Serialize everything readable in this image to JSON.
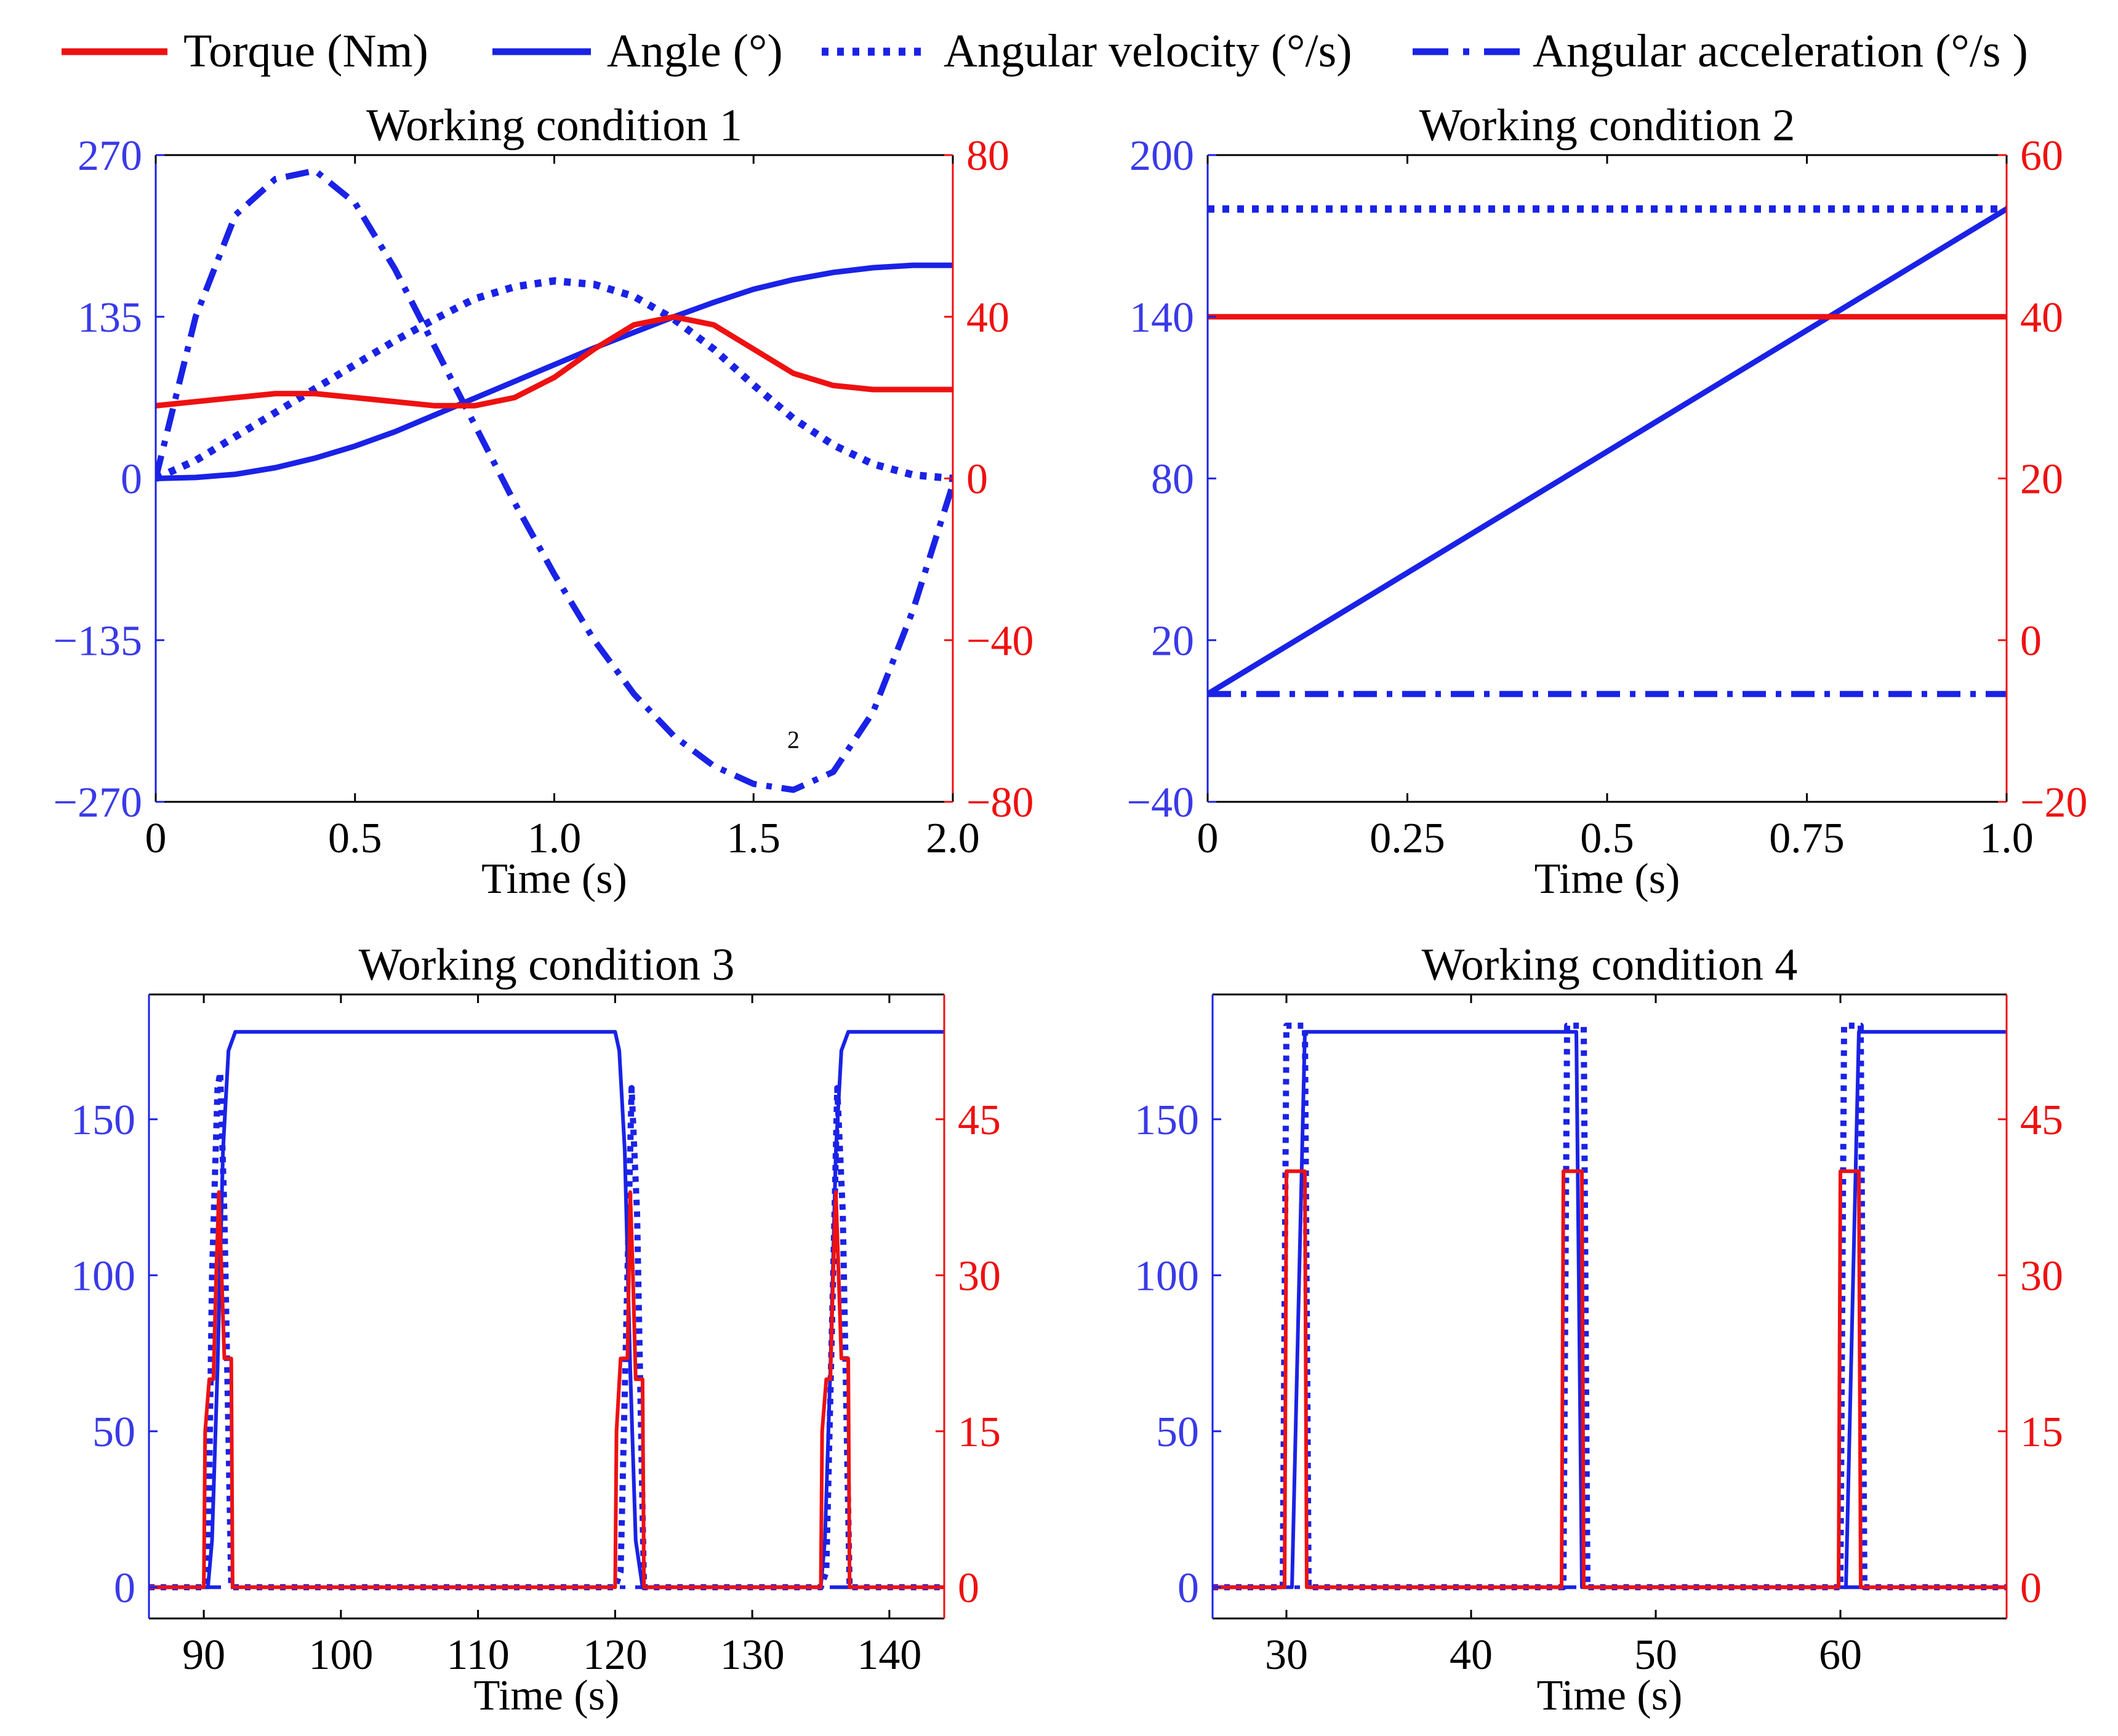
{
  "colors": {
    "torque": "#ee1111",
    "blue": "#1a22e6",
    "left_tick": "#3a3ae8",
    "right_tick": "#ee1111"
  },
  "legend": [
    {
      "label": "Torque (Nm)",
      "style": "solid-red"
    },
    {
      "label": "Angle (°)",
      "style": "solid-blue"
    },
    {
      "label": "Angular velocity (°/s)",
      "style": "dotted-blue"
    },
    {
      "label": "Angular acceleration (°/s )",
      "style": "dashdot-blue"
    }
  ],
  "chart_data": [
    {
      "type": "line",
      "title": "Working condition 1",
      "xlabel": "Time (s)",
      "xlim": [
        0,
        2
      ],
      "xticks": [
        0,
        0.5,
        1.0,
        1.5,
        2.0
      ],
      "xtick_labels": [
        "0",
        "0.5",
        "1.0",
        "1.5",
        "2.0"
      ],
      "ylim_left": [
        -270,
        270
      ],
      "yticks_left": [
        -270,
        -135,
        0,
        135,
        270
      ],
      "ytick_labels_left": [
        "−270",
        "−135",
        "0",
        "135",
        "270"
      ],
      "ylim_right": [
        -80,
        80
      ],
      "yticks_right": [
        -80,
        -40,
        0,
        40,
        80
      ],
      "ytick_labels_right": [
        "−80",
        "−40",
        "0",
        "40",
        "80"
      ],
      "annotation": {
        "text": "2",
        "x": 1.6,
        "y": -225
      },
      "series": [
        {
          "name": "Angle (°)",
          "axis": "left",
          "style": "solid-blue",
          "x": [
            0,
            0.1,
            0.2,
            0.3,
            0.4,
            0.5,
            0.6,
            0.7,
            0.8,
            0.9,
            1.0,
            1.1,
            1.2,
            1.3,
            1.4,
            1.5,
            1.6,
            1.7,
            1.8,
            1.9,
            2.0
          ],
          "y": [
            0,
            0.8,
            3.5,
            9,
            17,
            27,
            39,
            53,
            67,
            81,
            95,
            109,
            122,
            135,
            147,
            158,
            166,
            172,
            176,
            178,
            178
          ]
        },
        {
          "name": "Angular velocity (°/s)",
          "axis": "left",
          "style": "dotted-blue",
          "x": [
            0,
            0.1,
            0.2,
            0.3,
            0.4,
            0.5,
            0.6,
            0.7,
            0.8,
            0.9,
            1.0,
            1.1,
            1.2,
            1.3,
            1.4,
            1.5,
            1.6,
            1.7,
            1.8,
            1.9,
            2.0
          ],
          "y": [
            0,
            15,
            35,
            55,
            75,
            95,
            115,
            133,
            150,
            160,
            165,
            162,
            152,
            133,
            108,
            78,
            50,
            28,
            12,
            3,
            0
          ]
        },
        {
          "name": "Angular acceleration (°/s )",
          "axis": "left",
          "style": "dashdot-blue",
          "x": [
            0,
            0.1,
            0.2,
            0.3,
            0.4,
            0.5,
            0.6,
            0.7,
            0.8,
            0.9,
            1.0,
            1.1,
            1.2,
            1.3,
            1.4,
            1.5,
            1.6,
            1.7,
            1.8,
            1.9,
            2.0
          ],
          "y": [
            0,
            135,
            220,
            250,
            257,
            230,
            175,
            110,
            45,
            -20,
            -80,
            -135,
            -180,
            -215,
            -240,
            -255,
            -260,
            -245,
            -195,
            -110,
            -5
          ]
        },
        {
          "name": "Torque (Nm)",
          "axis": "right",
          "style": "solid-red",
          "x": [
            0,
            0.1,
            0.2,
            0.3,
            0.4,
            0.5,
            0.6,
            0.7,
            0.8,
            0.9,
            1.0,
            1.1,
            1.2,
            1.3,
            1.4,
            1.5,
            1.6,
            1.7,
            1.8,
            1.9,
            2.0
          ],
          "y": [
            18,
            19,
            20,
            21,
            21,
            20,
            19,
            18,
            18,
            20,
            25,
            32,
            38,
            40,
            38,
            32,
            26,
            23,
            22,
            22,
            22
          ]
        }
      ]
    },
    {
      "type": "line",
      "title": "Working condition 2",
      "xlabel": "Time (s)",
      "xlim": [
        0,
        1
      ],
      "xticks": [
        0,
        0.25,
        0.5,
        0.75,
        1.0
      ],
      "xtick_labels": [
        "0",
        "0.25",
        "0.5",
        "0.75",
        "1.0"
      ],
      "ylim_left": [
        -40,
        200
      ],
      "yticks_left": [
        -40,
        20,
        80,
        140,
        200
      ],
      "ytick_labels_left": [
        "−40",
        "20",
        "80",
        "140",
        "200"
      ],
      "ylim_right": [
        -20,
        60
      ],
      "yticks_right": [
        -20,
        0,
        20,
        40,
        60
      ],
      "ytick_labels_right": [
        "−20",
        "0",
        "20",
        "40",
        "60"
      ],
      "series": [
        {
          "name": "Angle (°)",
          "axis": "left",
          "style": "solid-blue",
          "x": [
            0,
            1
          ],
          "y": [
            0,
            180
          ]
        },
        {
          "name": "Angular velocity (°/s)",
          "axis": "left",
          "style": "dotted-blue",
          "x": [
            0,
            1
          ],
          "y": [
            180,
            180
          ]
        },
        {
          "name": "Angular acceleration (°/s )",
          "axis": "left",
          "style": "dashdot-blue",
          "x": [
            0,
            1
          ],
          "y": [
            0,
            0
          ]
        },
        {
          "name": "Torque (Nm)",
          "axis": "right",
          "style": "solid-red",
          "x": [
            0,
            1
          ],
          "y": [
            40,
            40
          ]
        }
      ]
    },
    {
      "type": "line",
      "title": "Working condition 3",
      "xlabel": "Time (s)",
      "xlim": [
        86,
        144
      ],
      "xticks": [
        90,
        100,
        110,
        120,
        130,
        140
      ],
      "xtick_labels": [
        "90",
        "100",
        "110",
        "120",
        "130",
        "140"
      ],
      "ylim_left": [
        -10,
        190
      ],
      "yticks_left": [
        0,
        50,
        100,
        150
      ],
      "ytick_labels_left": [
        "0",
        "50",
        "100",
        "150"
      ],
      "ylim_right": [
        -3,
        57
      ],
      "yticks_right": [
        0,
        15,
        30,
        45
      ],
      "ytick_labels_right": [
        "0",
        "15",
        "30",
        "45"
      ],
      "series": [
        {
          "name": "Angle (°)",
          "axis": "left",
          "style": "solid-blue",
          "x": [
            86,
            90.3,
            90.6,
            91,
            91.4,
            91.8,
            92.3,
            120,
            120.3,
            120.7,
            121.1,
            121.5,
            122,
            135,
            135.3,
            135.7,
            136.1,
            136.5,
            137,
            144
          ],
          "y": [
            0,
            0,
            15,
            70,
            140,
            172,
            178,
            178,
            172,
            140,
            70,
            15,
            0,
            0,
            15,
            70,
            140,
            172,
            178,
            178
          ]
        },
        {
          "name": "Angular velocity (°/s)",
          "axis": "left",
          "style": "dotted-blue",
          "x": [
            86,
            90,
            90.3,
            90.6,
            91,
            91.2,
            91.5,
            92,
            120,
            120.4,
            120.9,
            121.2,
            121.6,
            122.1,
            135,
            135.4,
            135.9,
            136.2,
            136.6,
            137.1,
            144
          ],
          "y": [
            0,
            0,
            5,
            100,
            160,
            165,
            120,
            0,
            0,
            5,
            100,
            160,
            120,
            0,
            0,
            5,
            100,
            160,
            120,
            0,
            0
          ]
        },
        {
          "name": "Angular acceleration (°/s )",
          "axis": "left",
          "style": "dashdot-blue",
          "x": [
            86,
            144
          ],
          "y": [
            0,
            0
          ]
        },
        {
          "name": "Torque (Nm)",
          "axis": "right",
          "style": "solid-red",
          "x": [
            86,
            90,
            90.1,
            90.4,
            90.7,
            90.9,
            91.1,
            91.3,
            91.5,
            91.6,
            91.7,
            91.8,
            92,
            92.1,
            120,
            120.1,
            120.4,
            120.7,
            120.9,
            121.1,
            121.3,
            121.5,
            121.6,
            121.7,
            121.8,
            122,
            122.1,
            135,
            135.1,
            135.4,
            135.7,
            135.9,
            136.1,
            136.3,
            136.5,
            136.6,
            136.7,
            136.8,
            137,
            137.1,
            144
          ],
          "y": [
            0,
            0,
            15,
            20,
            20,
            30,
            38,
            30,
            22,
            22,
            22,
            22,
            22,
            0,
            0,
            15,
            22,
            22,
            22,
            38,
            30,
            20,
            20,
            20,
            20,
            20,
            0,
            0,
            15,
            20,
            20,
            30,
            38,
            30,
            22,
            22,
            22,
            22,
            22,
            0,
            0
          ]
        }
      ]
    },
    {
      "type": "line",
      "title": "Working condition 4",
      "xlabel": "Time (s)",
      "xlim": [
        26,
        69
      ],
      "xticks": [
        30,
        40,
        50,
        60
      ],
      "xtick_labels": [
        "30",
        "40",
        "50",
        "60"
      ],
      "ylim_left": [
        -10,
        190
      ],
      "yticks_left": [
        0,
        50,
        100,
        150
      ],
      "ytick_labels_left": [
        "0",
        "50",
        "100",
        "150"
      ],
      "ylim_right": [
        -3,
        57
      ],
      "yticks_right": [
        0,
        15,
        30,
        45
      ],
      "ytick_labels_right": [
        "0",
        "15",
        "30",
        "45"
      ],
      "series": [
        {
          "name": "Angle (°)",
          "axis": "left",
          "style": "solid-blue",
          "x": [
            26,
            30,
            30.3,
            31,
            45,
            45.7,
            46,
            60,
            60.3,
            61,
            69
          ],
          "y": [
            0,
            0,
            0,
            178,
            178,
            178,
            0,
            0,
            0,
            178,
            178
          ]
        },
        {
          "name": "Angular velocity (°/s)",
          "axis": "left",
          "style": "dotted-blue",
          "x": [
            26,
            29.8,
            30,
            31,
            31.2,
            45,
            45.2,
            46.1,
            46.3,
            60,
            60.2,
            61.1,
            61.3,
            69
          ],
          "y": [
            0,
            0,
            180,
            180,
            0,
            0,
            180,
            180,
            0,
            0,
            180,
            180,
            0,
            0
          ]
        },
        {
          "name": "Angular acceleration (°/s )",
          "axis": "left",
          "style": "dashdot-blue",
          "x": [
            26,
            69
          ],
          "y": [
            0,
            0
          ]
        },
        {
          "name": "Torque (Nm)",
          "axis": "right",
          "style": "solid-red",
          "x": [
            26,
            29.9,
            30,
            31,
            31.1,
            44.9,
            45,
            46,
            46.1,
            59.9,
            60,
            61,
            61.1,
            69
          ],
          "y": [
            0,
            0,
            40,
            40,
            0,
            0,
            40,
            40,
            0,
            0,
            40,
            40,
            0,
            0
          ]
        }
      ]
    }
  ]
}
